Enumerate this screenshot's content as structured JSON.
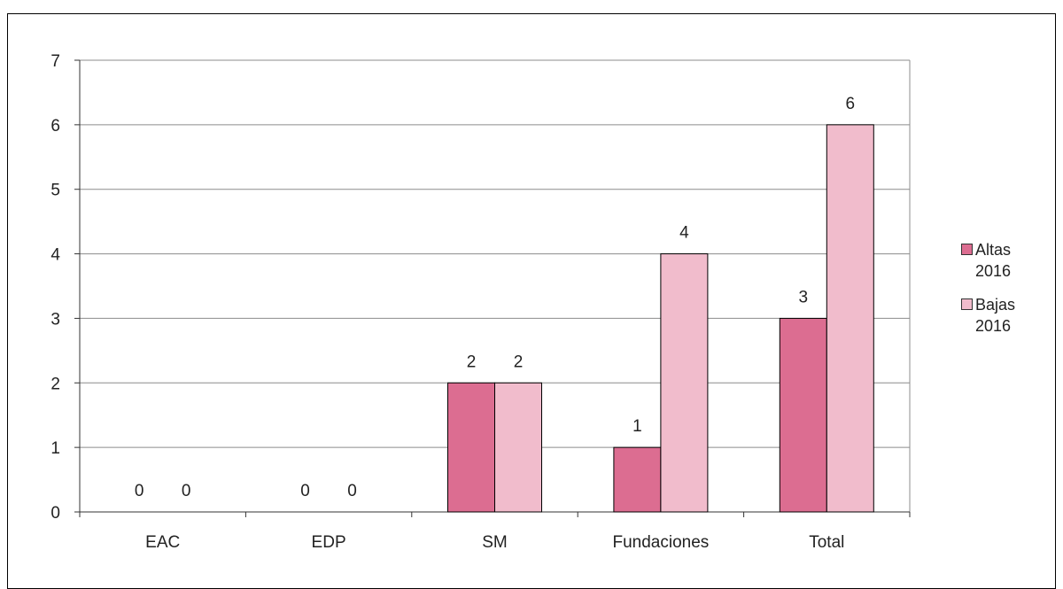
{
  "page": {
    "top_strip_text": ""
  },
  "chart_data": {
    "type": "bar",
    "title": "",
    "xlabel": "",
    "ylabel": "",
    "categories": [
      "EAC",
      "EDP",
      "SM",
      "Fundaciones",
      "Total"
    ],
    "series": [
      {
        "name": "Altas 2016",
        "values": [
          0,
          0,
          2,
          1,
          3
        ],
        "color": "#dc6d91"
      },
      {
        "name": "Bajas 2016",
        "values": [
          0,
          0,
          2,
          4,
          6
        ],
        "color": "#f1bccc"
      }
    ],
    "ylim": [
      0,
      7
    ],
    "yticks": [
      "0",
      "1",
      "2",
      "3",
      "4",
      "5",
      "6",
      "7"
    ],
    "grid": true,
    "data_labels": true,
    "legend_position": "right"
  }
}
